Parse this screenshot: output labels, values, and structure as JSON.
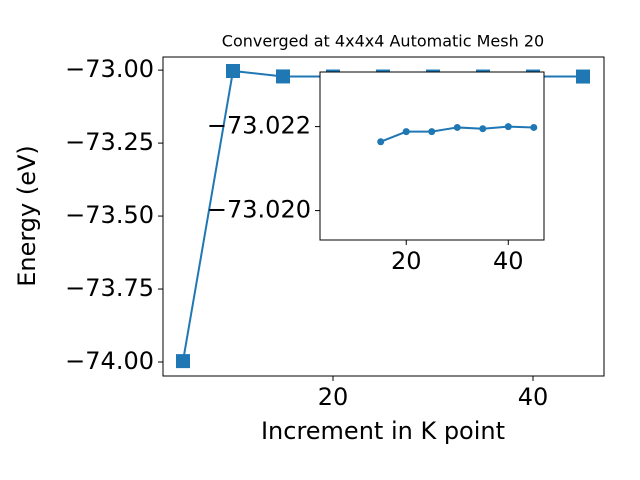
{
  "chart_data": {
    "type": "line",
    "title": "Converged at 4x4x4 Automatic Mesh 20",
    "xlabel": "Increment in K point",
    "ylabel": "Energy (eV)",
    "x": [
      5,
      10,
      15,
      20,
      25,
      30,
      35,
      40,
      45
    ],
    "series": [
      {
        "color": "#1f77b4",
        "marker": "square",
        "values": [
          -73.997,
          -73.003,
          -73.0216,
          -73.0219,
          -73.0219,
          -73.022,
          -73.022,
          -73.022,
          -73.022
        ]
      }
    ],
    "xlim": [
      3.0,
      47.1
    ],
    "ylim": [
      -74.048,
      -72.955
    ],
    "xticks": [
      20,
      40
    ],
    "yticks": [
      {
        "value": -74.0,
        "label": "−74.00"
      },
      {
        "value": -73.75,
        "label": "−73.75"
      },
      {
        "value": -73.5,
        "label": "−73.50"
      },
      {
        "value": -73.25,
        "label": "−73.25"
      },
      {
        "value": -73.0,
        "label": "−73.00"
      }
    ],
    "inset": {
      "type": "line",
      "x": [
        15,
        20,
        25,
        30,
        35,
        40,
        45
      ],
      "series": [
        {
          "color": "#1f77b4",
          "marker": "circle",
          "values": [
            -73.02164,
            -73.02188,
            -73.02188,
            -73.02198,
            -73.02195,
            -73.022,
            -73.02198
          ]
        }
      ],
      "xlim": [
        3.1,
        47.0
      ],
      "ylim": [
        -73.0193,
        -73.0233
      ],
      "xticks": [
        20,
        40
      ],
      "yticks": [
        {
          "value": -73.022,
          "label": "−73.022"
        },
        {
          "value": -73.02,
          "label": "−73.020"
        }
      ]
    }
  }
}
